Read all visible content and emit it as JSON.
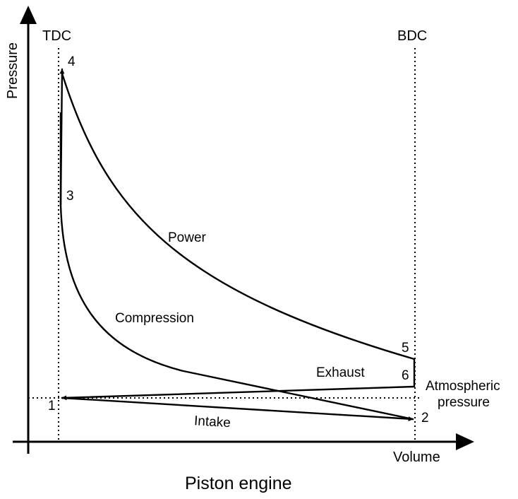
{
  "axes": {
    "y_label": "Pressure",
    "x_label": "Volume"
  },
  "markers": {
    "tdc": "TDC",
    "bdc": "BDC"
  },
  "atmospheric": {
    "line1": "Atmospheric",
    "line2": "pressure"
  },
  "points": {
    "p1": "1",
    "p2": "2",
    "p3": "3",
    "p4": "4",
    "p5": "5",
    "p6": "6"
  },
  "strokes": {
    "power": "Power",
    "compression": "Compression",
    "exhaust": "Exhaust",
    "intake": "Intake"
  },
  "title": "Piston engine"
}
